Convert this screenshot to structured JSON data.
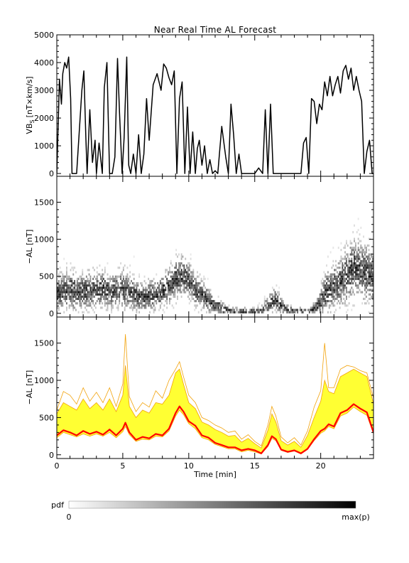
{
  "title": "Near Real Time AL Forecast",
  "colors": {
    "line": "#000000",
    "band_fill": "#ffff33",
    "band_edge": "#f2a20a",
    "median": "#ff0000",
    "pdf_dark": "#000000",
    "pdf_light": "#ffffff"
  },
  "chart_data": [
    {
      "type": "line",
      "name": "vbs",
      "ylabel": "VB",
      "ylabel_sub": "S",
      "ylabel_unit": "[nT×km/s]",
      "xlim": [
        0,
        24
      ],
      "ylim": [
        -100,
        5000
      ],
      "yticks": [
        0,
        1000,
        2000,
        3000,
        4000,
        5000
      ],
      "x": [
        0,
        0.2,
        0.35,
        0.45,
        0.6,
        0.75,
        0.9,
        1.05,
        1.15,
        1.3,
        1.5,
        1.7,
        1.9,
        2.05,
        2.2,
        2.3,
        2.5,
        2.7,
        2.9,
        3.0,
        3.2,
        3.45,
        3.6,
        3.8,
        4.0,
        4.2,
        4.4,
        4.6,
        4.75,
        4.95,
        5.1,
        5.3,
        5.45,
        5.6,
        5.8,
        6.0,
        6.2,
        6.4,
        6.6,
        6.8,
        7.0,
        7.3,
        7.6,
        7.9,
        8.1,
        8.3,
        8.5,
        8.7,
        8.9,
        9.1,
        9.3,
        9.5,
        9.7,
        9.9,
        10.1,
        10.3,
        10.5,
        10.65,
        10.8,
        11.0,
        11.2,
        11.4,
        11.6,
        11.8,
        12.0,
        12.2,
        12.5,
        12.8,
        13.0,
        13.2,
        13.4,
        13.6,
        13.8,
        14.0,
        14.5,
        15.0,
        15.3,
        15.6,
        15.8,
        16.0,
        16.2,
        16.4,
        16.6,
        16.8,
        17.0,
        17.5,
        18.0,
        18.5,
        18.7,
        18.9,
        19.1,
        19.3,
        19.5,
        19.7,
        19.9,
        20.1,
        20.3,
        20.5,
        20.7,
        20.9,
        21.1,
        21.3,
        21.5,
        21.7,
        21.9,
        22.1,
        22.3,
        22.5,
        22.7,
        22.9,
        23.1,
        23.3,
        23.5,
        23.7,
        23.9,
        24.0
      ],
      "y": [
        0,
        3400,
        2500,
        3600,
        4000,
        3800,
        4200,
        2700,
        0,
        0,
        0,
        1500,
        3000,
        3700,
        1300,
        0,
        2300,
        400,
        1200,
        0,
        1100,
        0,
        3100,
        4000,
        0,
        0,
        600,
        4150,
        2200,
        0,
        1300,
        4200,
        300,
        0,
        700,
        0,
        1400,
        0,
        700,
        2700,
        1200,
        3200,
        3600,
        3000,
        3950,
        3800,
        3450,
        3200,
        3700,
        0,
        2700,
        3300,
        0,
        2400,
        0,
        1500,
        0,
        900,
        1200,
        300,
        1000,
        0,
        500,
        0,
        100,
        0,
        1700,
        600,
        0,
        2500,
        1400,
        0,
        700,
        0,
        0,
        0,
        200,
        0,
        2300,
        0,
        2500,
        0,
        0,
        0,
        0,
        0,
        0,
        0,
        1100,
        1300,
        0,
        2700,
        2600,
        1800,
        2500,
        2300,
        3300,
        2800,
        3500,
        2800,
        3200,
        3500,
        2900,
        3700,
        3900,
        3400,
        3800,
        3000,
        3500,
        3000,
        2600,
        0,
        800,
        1200,
        0,
        0
      ]
    },
    {
      "type": "heatmap",
      "name": "al_pdf",
      "ylabel": "−AL [nT]",
      "xlim": [
        0,
        24
      ],
      "ylim": [
        -50,
        1850
      ],
      "yticks": [
        0,
        500,
        1000,
        1500
      ],
      "x": [
        0,
        0.5,
        1,
        1.5,
        2,
        2.5,
        3,
        3.5,
        4,
        4.5,
        5,
        5.5,
        6,
        6.5,
        7,
        7.5,
        8,
        8.5,
        9,
        9.5,
        10,
        10.5,
        11,
        11.5,
        12,
        12.5,
        13,
        13.5,
        14,
        14.5,
        15,
        15.5,
        16,
        16.5,
        17,
        17.5,
        18,
        18.5,
        19,
        19.5,
        20,
        20.5,
        21,
        21.5,
        22,
        22.5,
        23,
        23.5,
        24
      ],
      "center": [
        260,
        280,
        300,
        270,
        280,
        310,
        300,
        330,
        280,
        300,
        320,
        280,
        220,
        200,
        230,
        240,
        300,
        370,
        450,
        500,
        420,
        300,
        230,
        150,
        100,
        50,
        20,
        10,
        10,
        10,
        10,
        30,
        100,
        180,
        80,
        30,
        20,
        20,
        10,
        40,
        150,
        300,
        370,
        420,
        520,
        600,
        580,
        520,
        480
      ],
      "spread": [
        200,
        250,
        260,
        230,
        220,
        250,
        230,
        240,
        210,
        220,
        260,
        230,
        200,
        190,
        190,
        200,
        210,
        230,
        260,
        250,
        220,
        200,
        180,
        150,
        120,
        90,
        60,
        50,
        50,
        50,
        50,
        70,
        120,
        150,
        100,
        70,
        50,
        50,
        40,
        90,
        200,
        280,
        300,
        320,
        350,
        370,
        360,
        350,
        330
      ],
      "colorbar": {
        "label": "pdf",
        "min_label": "0",
        "max_label": "max(p)"
      }
    },
    {
      "type": "area",
      "name": "al_band",
      "xlabel": "Time [min]",
      "ylabel": "−AL [nT]",
      "xlim": [
        0,
        24
      ],
      "ylim": [
        -50,
        1850
      ],
      "yticks": [
        0,
        500,
        1000,
        1500
      ],
      "xticks": [
        0,
        5,
        10,
        15,
        20
      ],
      "x": [
        0,
        0.5,
        1,
        1.5,
        2,
        2.5,
        3,
        3.5,
        4,
        4.5,
        5,
        5.2,
        5.5,
        6,
        6.5,
        7,
        7.5,
        8,
        8.5,
        9,
        9.3,
        9.6,
        10,
        10.5,
        11,
        11.5,
        12,
        12.5,
        13,
        13.5,
        14,
        14.5,
        15,
        15.5,
        16,
        16.3,
        16.6,
        17,
        17.5,
        18,
        18.5,
        19,
        19.5,
        20,
        20.3,
        20.6,
        21,
        21.5,
        22,
        22.5,
        23,
        23.5,
        24
      ],
      "median": [
        260,
        330,
        300,
        260,
        320,
        280,
        310,
        270,
        340,
        260,
        350,
        430,
        300,
        200,
        240,
        220,
        280,
        260,
        350,
        560,
        650,
        580,
        450,
        390,
        260,
        230,
        160,
        130,
        100,
        100,
        60,
        80,
        60,
        20,
        130,
        250,
        210,
        70,
        40,
        60,
        20,
        80,
        210,
        320,
        350,
        410,
        380,
        560,
        600,
        680,
        620,
        570,
        300
      ],
      "lower": [
        230,
        300,
        270,
        240,
        280,
        250,
        280,
        250,
        300,
        230,
        310,
        380,
        270,
        180,
        210,
        200,
        250,
        240,
        320,
        520,
        600,
        540,
        420,
        350,
        230,
        200,
        140,
        110,
        80,
        80,
        40,
        60,
        40,
        10,
        110,
        220,
        190,
        60,
        30,
        50,
        10,
        70,
        190,
        290,
        320,
        380,
        350,
        520,
        560,
        640,
        580,
        530,
        280
      ],
      "upper": [
        550,
        700,
        650,
        600,
        750,
        620,
        700,
        600,
        750,
        580,
        800,
        1200,
        650,
        500,
        600,
        560,
        700,
        680,
        800,
        1100,
        1150,
        950,
        700,
        620,
        440,
        400,
        340,
        300,
        250,
        260,
        170,
        220,
        150,
        90,
        330,
        550,
        440,
        190,
        130,
        180,
        100,
        260,
        500,
        720,
        1000,
        850,
        820,
        1050,
        1100,
        1150,
        1100,
        1050,
        680
      ],
      "envelope": [
        600,
        850,
        800,
        680,
        900,
        720,
        840,
        700,
        900,
        650,
        950,
        1620,
        780,
        580,
        700,
        640,
        860,
        760,
        1000,
        1150,
        1250,
        1050,
        800,
        700,
        500,
        460,
        400,
        360,
        300,
        320,
        210,
        270,
        180,
        120,
        400,
        650,
        520,
        240,
        160,
        230,
        130,
        320,
        640,
        860,
        1500,
        900,
        900,
        1150,
        1200,
        1180,
        1130,
        1100,
        760
      ]
    }
  ]
}
